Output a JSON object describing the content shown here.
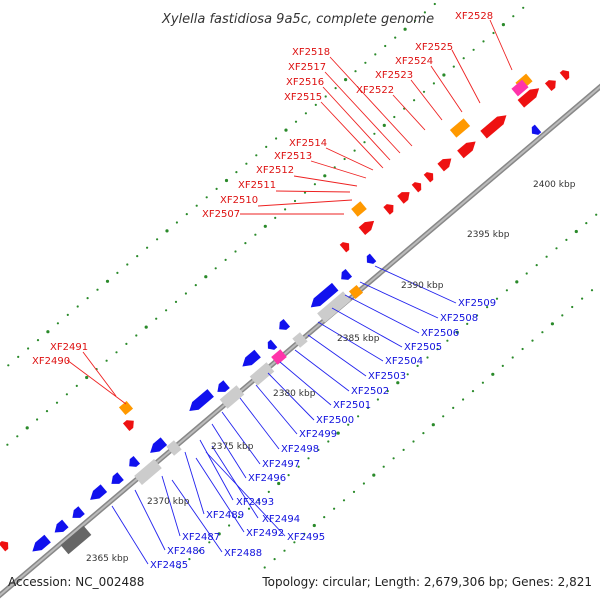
{
  "title": "Xylella fastidiosa 9a5c, complete genome",
  "footer": {
    "accession": "Accession: NC_002488",
    "summary": "Topology: circular; Length: 2,679,306 bp; Genes: 2,821"
  },
  "colors": {
    "forward_gene": "#ee1111",
    "reverse_gene": "#1111ee",
    "rna": "#ff9900",
    "pseudo": "#ff33aa",
    "other": "#cccccc",
    "backbone": "#999999",
    "dots": "#2a8a2a"
  },
  "scale_labels": [
    "2365 kbp",
    "2370 kbp",
    "2375 kbp",
    "2380 kbp",
    "2385 kbp",
    "2390 kbp",
    "2395 kbp",
    "2400 kbp"
  ],
  "gene_labels_top": [
    "XF2528",
    "XF2525",
    "XF2524",
    "XF2523",
    "XF2522",
    "XF2518",
    "XF2517",
    "XF2516",
    "XF2515",
    "XF2514",
    "XF2513",
    "XF2512",
    "XF2511",
    "XF2510",
    "XF2507",
    "XF2491",
    "XF2490"
  ],
  "gene_labels_bottom": [
    "XF2509",
    "XF2508",
    "XF2506",
    "XF2505",
    "XF2504",
    "XF2503",
    "XF2502",
    "XF2501",
    "XF2500",
    "XF2499",
    "XF2498",
    "XF2497",
    "XF2496",
    "XF2493",
    "XF2494",
    "XF2495",
    "XF2489",
    "XF2492",
    "XF2487",
    "XF2488",
    "XF2486",
    "XF2485"
  ]
}
